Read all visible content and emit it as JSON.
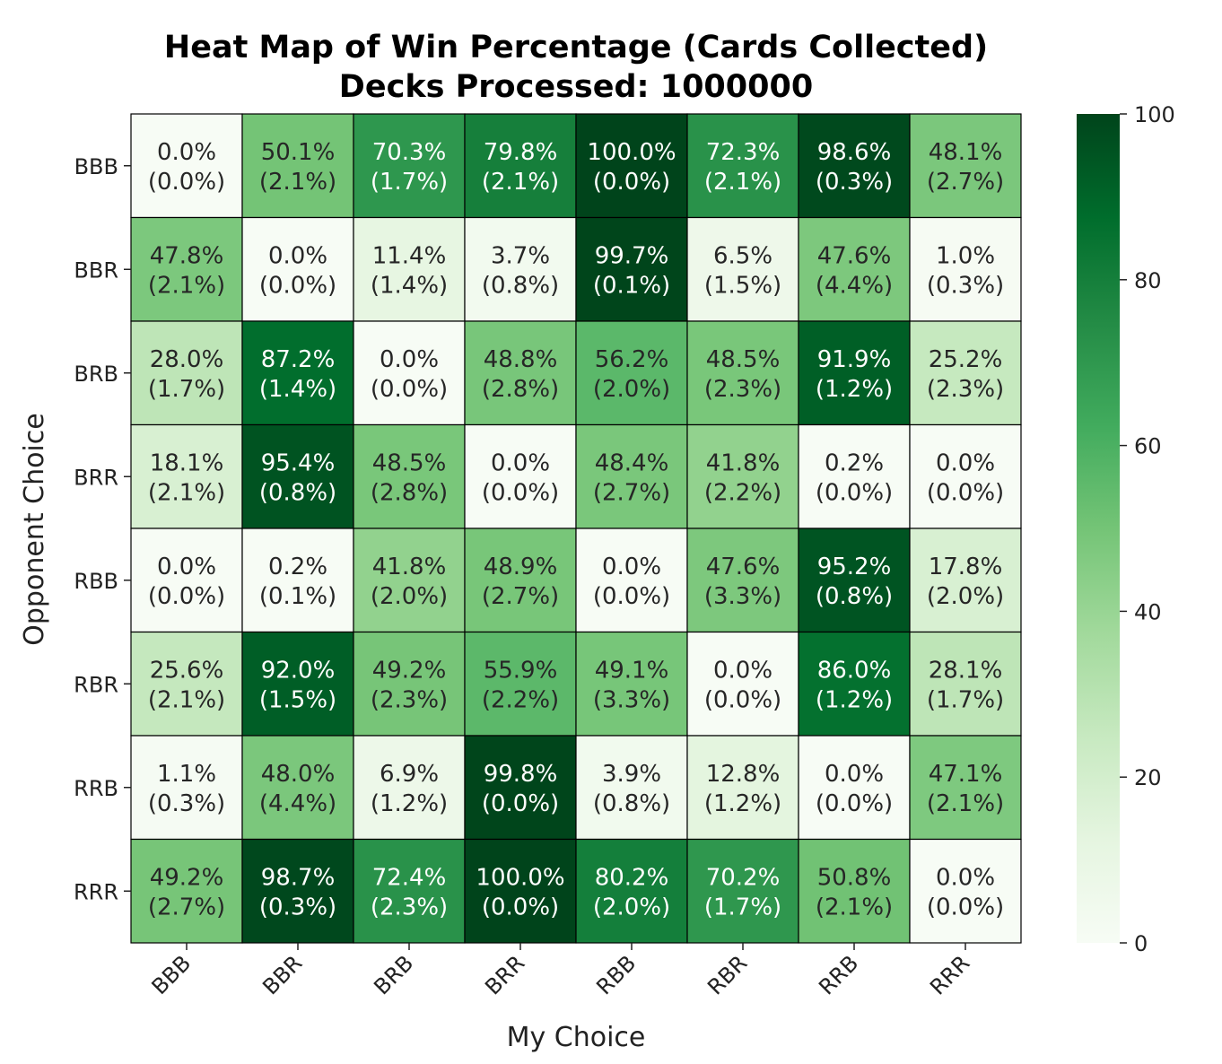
{
  "chart_data": {
    "type": "heatmap",
    "title_lines": [
      "Heat Map of Win Percentage (Cards Collected)",
      "Decks Processed: 1000000"
    ],
    "xlabel": "My Choice",
    "ylabel": "Opponent Choice",
    "x_categories": [
      "BBB",
      "BBR",
      "BRB",
      "BRR",
      "RBB",
      "RBR",
      "RRB",
      "RRR"
    ],
    "y_categories": [
      "BBB",
      "BBR",
      "BRB",
      "BRR",
      "RBB",
      "RBR",
      "RRB",
      "RRR"
    ],
    "values": [
      [
        0.0,
        50.1,
        70.3,
        79.8,
        100.0,
        72.3,
        98.6,
        48.1
      ],
      [
        47.8,
        0.0,
        11.4,
        3.7,
        99.7,
        6.5,
        47.6,
        1.0
      ],
      [
        28.0,
        87.2,
        0.0,
        48.8,
        56.2,
        48.5,
        91.9,
        25.2
      ],
      [
        18.1,
        95.4,
        48.5,
        0.0,
        48.4,
        41.8,
        0.2,
        0.0
      ],
      [
        0.0,
        0.2,
        41.8,
        48.9,
        0.0,
        47.6,
        95.2,
        17.8
      ],
      [
        25.6,
        92.0,
        49.2,
        55.9,
        49.1,
        0.0,
        86.0,
        28.1
      ],
      [
        1.1,
        48.0,
        6.9,
        99.8,
        3.9,
        12.8,
        0.0,
        47.1
      ],
      [
        49.2,
        98.7,
        72.4,
        100.0,
        80.2,
        70.2,
        50.8,
        0.0
      ]
    ],
    "draw_percentages": [
      [
        0.0,
        2.1,
        1.7,
        2.1,
        0.0,
        2.1,
        0.3,
        2.7
      ],
      [
        2.1,
        0.0,
        1.4,
        0.8,
        0.1,
        1.5,
        4.4,
        0.3
      ],
      [
        1.7,
        1.4,
        0.0,
        2.8,
        2.0,
        2.3,
        1.2,
        2.3
      ],
      [
        2.1,
        0.8,
        2.8,
        0.0,
        2.7,
        2.2,
        0.0,
        0.0
      ],
      [
        0.0,
        0.1,
        2.0,
        2.7,
        0.0,
        3.3,
        0.8,
        2.0
      ],
      [
        2.1,
        1.5,
        2.3,
        2.2,
        3.3,
        0.0,
        1.2,
        1.7
      ],
      [
        0.3,
        4.4,
        1.2,
        0.0,
        0.8,
        1.2,
        0.0,
        2.1
      ],
      [
        2.7,
        0.3,
        2.3,
        0.0,
        2.0,
        1.7,
        2.1,
        0.0
      ]
    ],
    "colorbar": {
      "range": [
        0,
        100
      ],
      "ticks": [
        0,
        20,
        40,
        60,
        80,
        100
      ]
    },
    "colormap": "Greens",
    "colors": {
      "low": "#f7fcf5",
      "high": "#00441b"
    }
  }
}
